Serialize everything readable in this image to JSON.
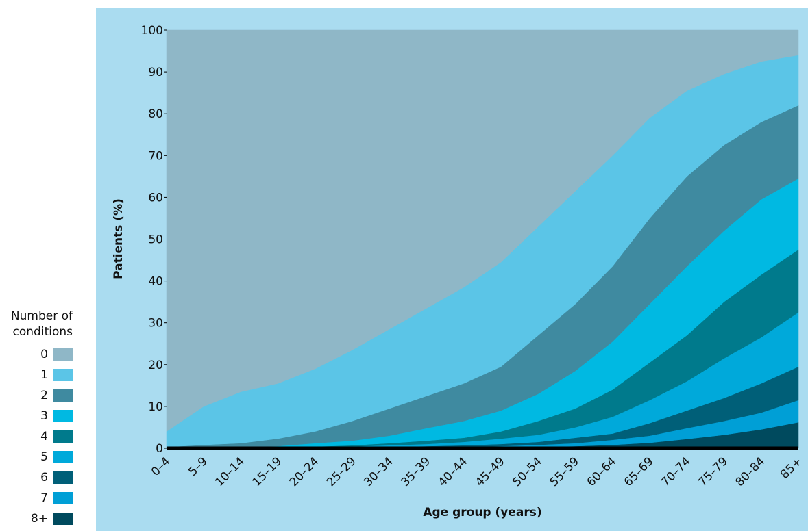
{
  "chart_data": {
    "type": "stacked_area",
    "y_label": "Patients (%)",
    "x_label": "Age group (years)",
    "legend_title": "Number of conditions",
    "legend": "left",
    "categories": [
      "0–4",
      "5–9",
      "10–14",
      "15–19",
      "20–24",
      "25–29",
      "30–34",
      "35–39",
      "40–44",
      "45–49",
      "50–54",
      "55–59",
      "60–64",
      "65–69",
      "70–74",
      "75–79",
      "80–84",
      "85+"
    ],
    "ylim": [
      0,
      100
    ],
    "yticks": [
      0,
      10,
      20,
      30,
      40,
      50,
      60,
      70,
      80,
      90,
      100
    ],
    "series": [
      {
        "name": "0",
        "color": "#8fb7c7",
        "values": [
          96,
          90,
          86.5,
          84.5,
          81,
          76.5,
          71.5,
          66.5,
          61.5,
          55.5,
          47,
          38.5,
          30,
          21,
          14.5,
          10.5,
          7.5,
          6
        ]
      },
      {
        "name": "1",
        "color": "#5bc5e7",
        "values": [
          3.7,
          9.2,
          12.3,
          13.2,
          15,
          17,
          19,
          21,
          23,
          25,
          26,
          27,
          26.5,
          24,
          20.5,
          17,
          14.5,
          12
        ]
      },
      {
        "name": "2",
        "color": "#3f8aa0",
        "values": [
          0.2,
          0.6,
          0.9,
          1.8,
          2.8,
          4.7,
          6.5,
          7.7,
          9,
          10.5,
          14,
          16,
          18,
          20.5,
          21.5,
          20.5,
          18.5,
          17.5
        ]
      },
      {
        "name": "3",
        "color": "#00b9e2",
        "values": [
          0.1,
          0.2,
          0.3,
          0.4,
          0.8,
          1.1,
          1.8,
          3,
          4,
          5,
          6.5,
          9,
          11.5,
          14,
          16.5,
          17,
          18,
          17
        ]
      },
      {
        "name": "4",
        "color": "#007a8c",
        "values": [
          0,
          0,
          0,
          0.1,
          0.2,
          0.3,
          0.5,
          0.8,
          1,
          1.7,
          3.3,
          4.5,
          6.5,
          9,
          11,
          13.5,
          15,
          15
        ]
      },
      {
        "name": "5",
        "color": "#00a9da",
        "values": [
          0,
          0,
          0,
          0,
          0.1,
          0.2,
          0.4,
          0.5,
          0.8,
          1.3,
          1.7,
          2.5,
          4,
          5.5,
          7,
          9.5,
          11,
          13
        ]
      },
      {
        "name": "6",
        "color": "#005f78",
        "values": [
          0,
          0,
          0,
          0,
          0.1,
          0.2,
          0.2,
          0.3,
          0.4,
          0.5,
          0.7,
          1.3,
          1.5,
          3,
          4.2,
          5.5,
          7,
          8
        ]
      },
      {
        "name": "7",
        "color": "#009fd6",
        "values": [
          0,
          0,
          0,
          0,
          0,
          0,
          0.1,
          0.2,
          0.2,
          0.3,
          0.5,
          0.7,
          1.2,
          1.7,
          2.6,
          3.3,
          4,
          5.3
        ]
      },
      {
        "name": "8+",
        "color": "#004a5e",
        "values": [
          0,
          0,
          0,
          0,
          0,
          0,
          0,
          0,
          0.1,
          0.2,
          0.3,
          0.5,
          0.8,
          1.3,
          2.2,
          3.2,
          4.5,
          6.2
        ]
      }
    ]
  }
}
